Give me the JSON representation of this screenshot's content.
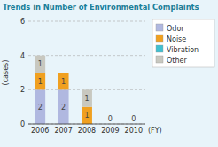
{
  "chart_data": {
    "type": "bar",
    "stacked": true,
    "title": "Trends in Number of Environmental Complaints",
    "ylabel": "(cases)",
    "xlabel": "(FY)",
    "categories": [
      "2006",
      "2007",
      "2008",
      "2009",
      "2010"
    ],
    "series": [
      {
        "name": "Odor",
        "color": "#b0b8e0",
        "values": [
          2,
          2,
          0,
          0,
          0
        ]
      },
      {
        "name": "Noise",
        "color": "#f0a020",
        "values": [
          1,
          1,
          1,
          0,
          0
        ]
      },
      {
        "name": "Vibration",
        "color": "#40c0d0",
        "values": [
          0,
          0,
          0,
          0,
          0
        ]
      },
      {
        "name": "Other",
        "color": "#c8c8c0",
        "values": [
          1,
          0,
          1,
          0,
          0
        ]
      }
    ],
    "ylim": [
      0,
      6
    ],
    "yticks": [
      0,
      2,
      4,
      6
    ],
    "grid": true,
    "legend": "right",
    "data_labels": true
  }
}
